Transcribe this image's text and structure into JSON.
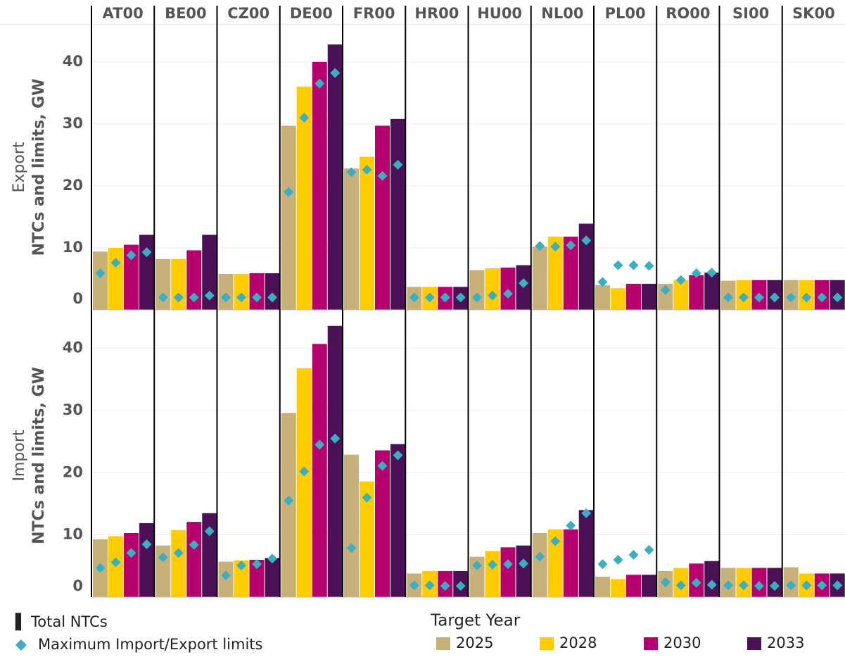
{
  "chart_data": {
    "type": "bar",
    "categories": [
      "AT00",
      "BE00",
      "CZ00",
      "DE00",
      "FR00",
      "HR00",
      "HU00",
      "NL00",
      "PL00",
      "RO00",
      "SI00",
      "SK00"
    ],
    "y_label": "NTCs and limits, GW",
    "series": [
      {
        "name": "2025",
        "color": "#c8b07a"
      },
      {
        "name": "2028",
        "color": "#ffcc00"
      },
      {
        "name": "2030",
        "color": "#b5006e"
      },
      {
        "name": "2033",
        "color": "#4b1156"
      }
    ],
    "marker_color": "#3aafc4",
    "bar_legend": "Total NTCs",
    "marker_legend": "Maximum Import/Export limits",
    "legend_title": "Target Year",
    "grid": true,
    "panels": [
      {
        "label": "Export",
        "ylim": [
          0,
          46
        ],
        "yticks": [
          0,
          10,
          20,
          30,
          40
        ],
        "values": [
          [
            9.4,
            8.2,
            5.8,
            29.7,
            22.8,
            3.7,
            6.4,
            10.2,
            4.0,
            4.2,
            4.7,
            4.8
          ],
          [
            10.0,
            8.2,
            5.8,
            36.0,
            24.7,
            3.7,
            6.7,
            11.8,
            3.5,
            4.8,
            4.8,
            4.8
          ],
          [
            10.5,
            9.6,
            5.9,
            40.0,
            29.7,
            3.7,
            6.8,
            11.8,
            4.2,
            5.6,
            4.8,
            4.8
          ],
          [
            12.1,
            12.1,
            5.9,
            42.8,
            30.8,
            3.7,
            7.2,
            13.9,
            4.2,
            6.0,
            4.8,
            4.8
          ]
        ],
        "limits": [
          [
            5.9,
            2.0,
            2.0,
            19.0,
            22.2,
            2.0,
            2.0,
            10.3,
            4.5,
            3.2,
            2.0,
            2.0
          ],
          [
            7.6,
            2.0,
            2.0,
            31.0,
            22.6,
            2.0,
            2.3,
            10.2,
            7.2,
            4.8,
            2.0,
            2.0
          ],
          [
            8.8,
            2.0,
            2.0,
            36.5,
            21.6,
            2.0,
            2.6,
            10.4,
            7.2,
            5.9,
            2.0,
            2.0
          ],
          [
            9.3,
            2.3,
            2.0,
            38.2,
            23.4,
            2.0,
            4.3,
            11.2,
            7.1,
            6.0,
            2.0,
            2.0
          ]
        ]
      },
      {
        "label": "Import",
        "ylim": [
          0,
          45.5
        ],
        "yticks": [
          0,
          10,
          20,
          30,
          40
        ],
        "values": [
          [
            9.3,
            8.3,
            5.7,
            29.6,
            22.9,
            3.8,
            6.5,
            10.3,
            3.3,
            4.2,
            4.7,
            4.8
          ],
          [
            9.8,
            10.8,
            5.9,
            36.8,
            18.6,
            4.2,
            7.4,
            10.9,
            2.9,
            4.7,
            4.7,
            3.8
          ],
          [
            10.3,
            12.1,
            6.0,
            40.7,
            23.6,
            4.2,
            8.0,
            10.9,
            3.6,
            5.4,
            4.7,
            3.8
          ],
          [
            11.9,
            13.5,
            6.3,
            43.6,
            24.6,
            4.2,
            8.3,
            14.0,
            3.6,
            5.8,
            4.7,
            3.8
          ]
        ],
        "limits": [
          [
            4.7,
            6.4,
            3.5,
            15.5,
            7.9,
            1.9,
            5.1,
            6.5,
            5.3,
            2.4,
            1.9,
            1.9
          ],
          [
            5.6,
            7.1,
            5.1,
            20.2,
            16.0,
            1.9,
            5.2,
            9.0,
            6.0,
            1.9,
            1.9,
            1.9
          ],
          [
            7.1,
            8.4,
            5.3,
            24.5,
            21.1,
            1.8,
            5.3,
            11.5,
            6.8,
            2.3,
            1.8,
            1.9
          ],
          [
            8.5,
            10.6,
            6.2,
            25.5,
            22.8,
            1.8,
            5.4,
            13.5,
            7.6,
            2.0,
            1.8,
            1.9
          ]
        ]
      }
    ]
  }
}
